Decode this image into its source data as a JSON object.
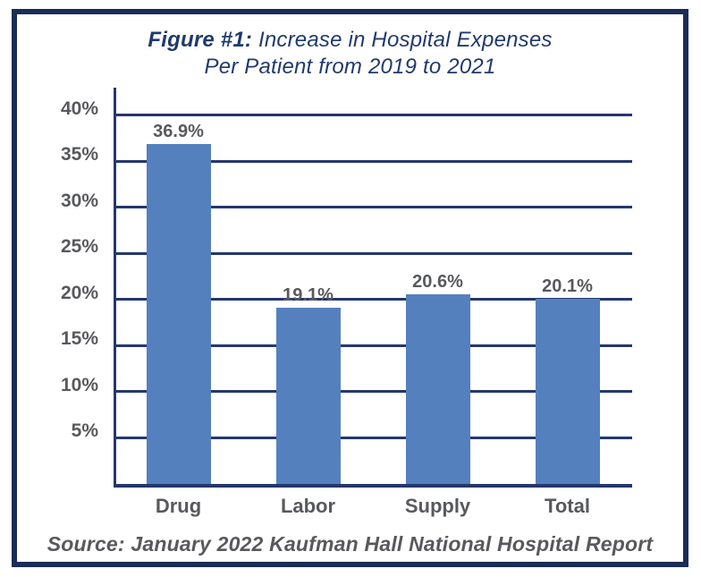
{
  "header": {
    "figure_label": "Figure #1:",
    "title_line1": "Increase in Hospital Expenses",
    "title_line2": "Per Patient from 2019 to 2021"
  },
  "footer": {
    "source": "Source: January 2022 Kaufman Hall National Hospital Report"
  },
  "colors": {
    "frame_border": "#1B2D55",
    "axis": "#25376D",
    "grid": "#25376D",
    "bar": "#5580BE",
    "title_text": "#203A6D",
    "label_text": "#58595C"
  },
  "chart_data": {
    "type": "bar",
    "title": "Figure #1: Increase in Hospital Expenses Per Patient from 2019 to 2021",
    "categories": [
      "Drug",
      "Labor",
      "Supply",
      "Total"
    ],
    "values": [
      36.9,
      19.1,
      20.6,
      20.1
    ],
    "value_labels": [
      "36.9%",
      "19.1%",
      "20.6%",
      "20.1%"
    ],
    "yticks": [
      5,
      10,
      15,
      20,
      25,
      30,
      35,
      40
    ],
    "ytick_labels": [
      "5%",
      "10%",
      "15%",
      "20%",
      "25%",
      "30%",
      "35%",
      "40%"
    ],
    "ylim": [
      0,
      43
    ],
    "xlabel": "",
    "ylabel": "",
    "grid": "horizontal",
    "legend": "none",
    "source": "Source: January 2022 Kaufman Hall National Hospital Report"
  }
}
